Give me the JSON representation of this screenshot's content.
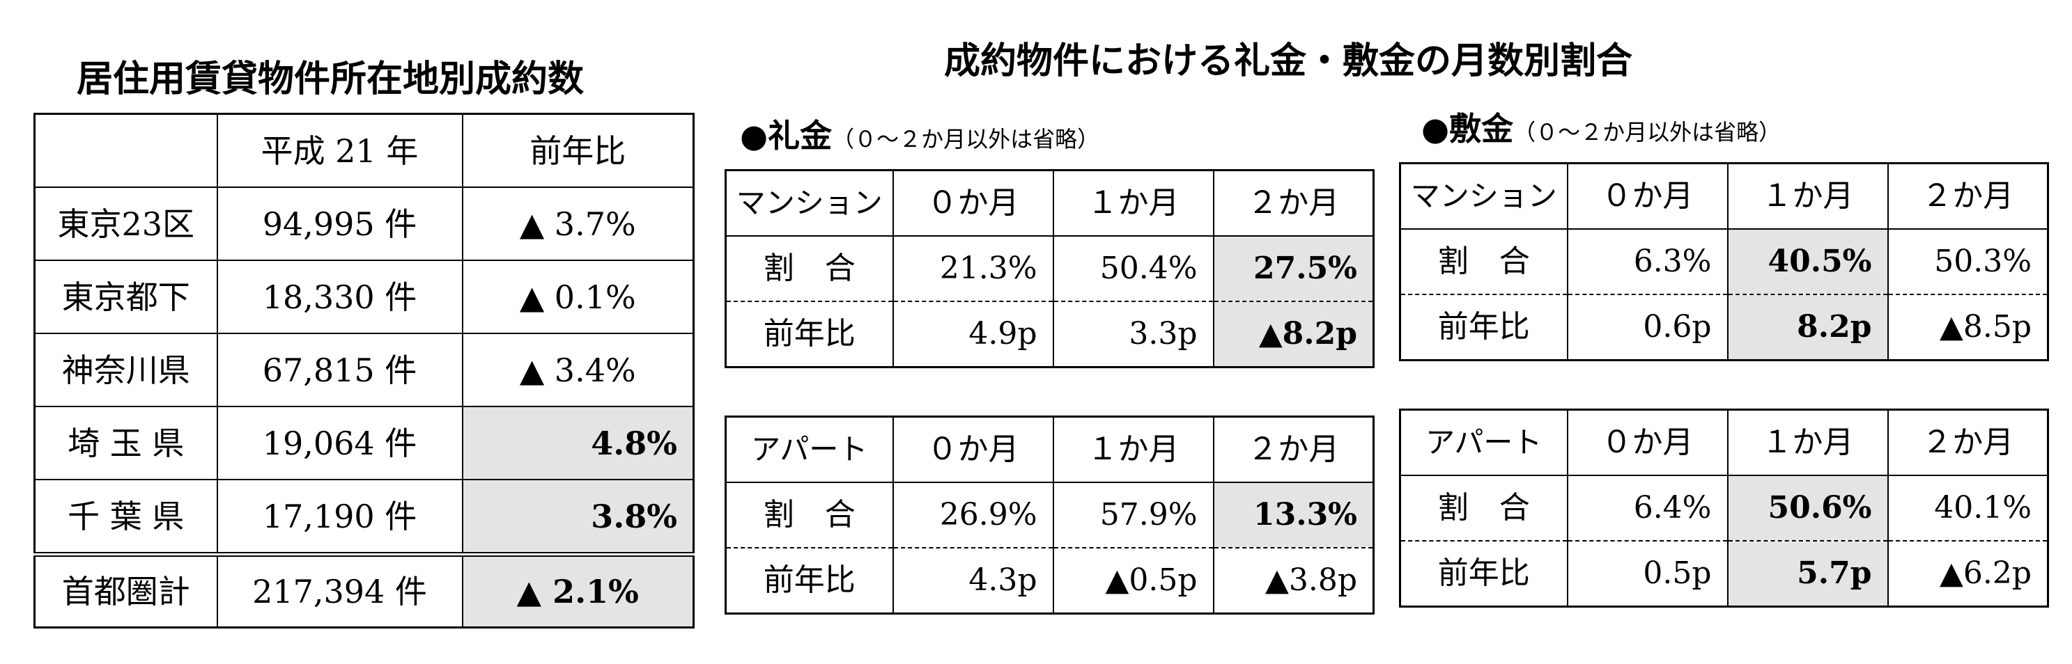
{
  "location_table": {
    "title": "居住用賃貸物件所在地別成約数",
    "header": {
      "blank": "",
      "year": "平成 21 年",
      "yoy": "前年比"
    },
    "rows": [
      {
        "area": "東京23区",
        "count": "94,995 件",
        "yoy": "▲ 3.7%",
        "highlight": false
      },
      {
        "area": "東京都下",
        "count": "18,330 件",
        "yoy": "▲ 0.1%",
        "highlight": false
      },
      {
        "area": "神奈川県",
        "count": "67,815 件",
        "yoy": "▲ 3.4%",
        "highlight": false
      },
      {
        "area": "埼 玉 県",
        "count": "19,064 件",
        "yoy": "4.8%",
        "highlight": true
      },
      {
        "area": "千 葉 県",
        "count": "17,190 件",
        "yoy": "3.8%",
        "highlight": true
      }
    ],
    "total": {
      "area": "首都圏計",
      "count": "217,394 件",
      "yoy": "▲ 2.1%",
      "highlight": true
    }
  },
  "main_title": "成約物件における礼金・敷金の月数別割合",
  "reikin": {
    "bullet": "●",
    "label": "礼金",
    "note": "（０～２か月以外は省略）",
    "mansion": {
      "header": [
        "マンション",
        "０か月",
        "１か月",
        "２か月"
      ],
      "ratio": [
        "割　合",
        "21.3%",
        "50.4%",
        "27.5%"
      ],
      "yoy": [
        "前年比",
        "4.9p",
        "3.3p",
        "▲8.2p"
      ]
    },
    "apart": {
      "header": [
        "アパート",
        "０か月",
        "１か月",
        "２か月"
      ],
      "ratio": [
        "割　合",
        "26.9%",
        "57.9%",
        "13.3%"
      ],
      "yoy": [
        "前年比",
        "4.3p",
        "▲0.5p",
        "▲3.8p"
      ]
    }
  },
  "shikikin": {
    "bullet": "●",
    "label": "敷金",
    "note": "（０～２か月以外は省略）",
    "mansion": {
      "header": [
        "マンション",
        "０か月",
        "１か月",
        "２か月"
      ],
      "ratio": [
        "割　合",
        "6.3%",
        "40.5%",
        "50.3%"
      ],
      "yoy": [
        "前年比",
        "0.6p",
        "8.2p",
        "▲8.5p"
      ]
    },
    "apart": {
      "header": [
        "アパート",
        "０か月",
        "１か月",
        "２か月"
      ],
      "ratio": [
        "割　合",
        "6.4%",
        "50.6%",
        "40.1%"
      ],
      "yoy": [
        "前年比",
        "0.5p",
        "5.7p",
        "▲6.2p"
      ]
    }
  },
  "colors": {
    "highlight": "#e4e4e4",
    "border": "#000000"
  }
}
